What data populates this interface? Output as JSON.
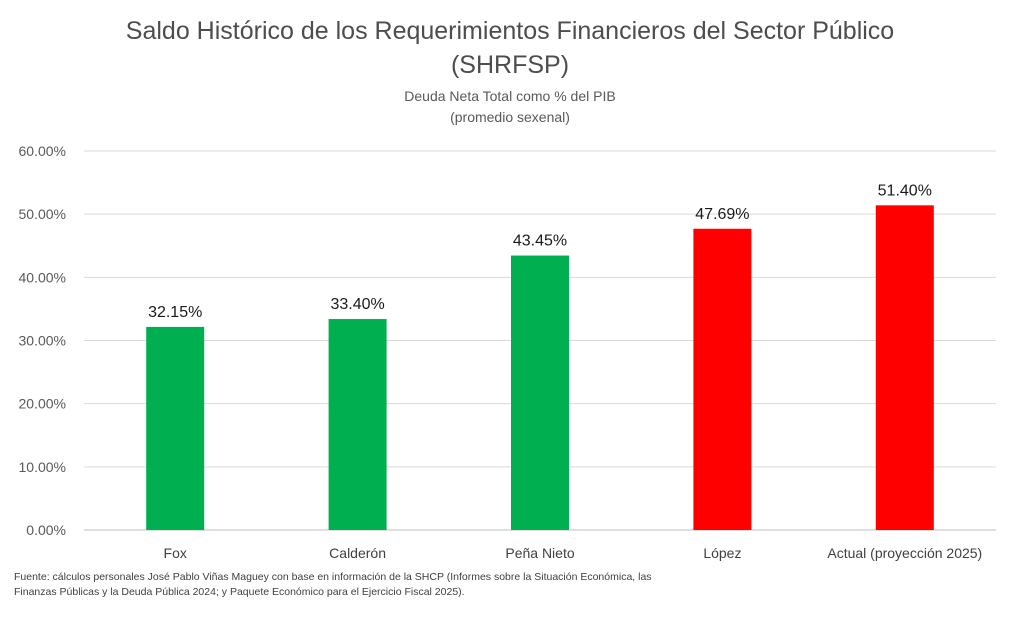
{
  "chart_data": {
    "type": "bar",
    "title_line1": "Saldo Histórico de los Requerimientos Financieros del Sector Público",
    "title_line2": "(SHRFSP)",
    "subtitle_line1": "Deuda Neta Total como % del PIB",
    "subtitle_line2": "(promedio sexenal)",
    "categories": [
      "Fox",
      "Calderón",
      "Peña Nieto",
      "López",
      "Actual (proyección 2025)"
    ],
    "values": [
      32.15,
      33.4,
      43.45,
      47.69,
      51.4
    ],
    "value_labels": [
      "32.15%",
      "33.40%",
      "43.45%",
      "47.69%",
      "51.40%"
    ],
    "bar_colors": [
      "#00b050",
      "#00b050",
      "#00b050",
      "#ff0000",
      "#ff0000"
    ],
    "ylim": [
      0,
      60
    ],
    "yticks": [
      0,
      10,
      20,
      30,
      40,
      50,
      60
    ],
    "ytick_labels": [
      "0.00%",
      "10.00%",
      "20.00%",
      "30.00%",
      "40.00%",
      "50.00%",
      "60.00%"
    ],
    "grid": true,
    "xlabel": "",
    "ylabel": ""
  },
  "source": {
    "line1": "Fuente: cálculos personales José Pablo Viñas Maguey con base en información de la SHCP (Informes sobre la Situación Económica, las",
    "line2": "Finanzas Públicas y la Deuda Pública 2024; y Paquete Económico para el Ejercicio Fiscal 2025)."
  }
}
